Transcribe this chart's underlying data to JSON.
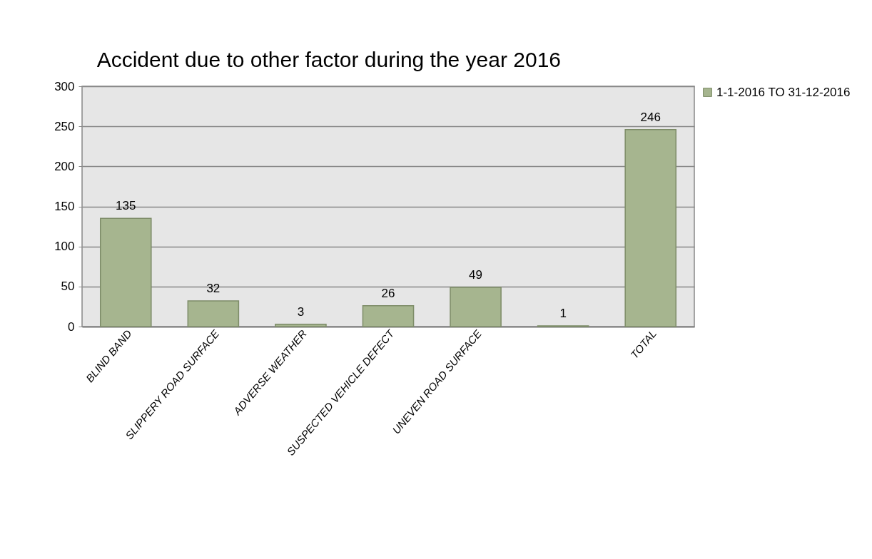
{
  "chart_data": {
    "type": "bar",
    "title": "Accident due to other factor during the year 2016",
    "categories": [
      "BLIND BAND",
      "SLIPPERY ROAD SURFACE",
      "ADVERSE WEATHER",
      "SUSPECTED VEHICLE DEFECT",
      "UNEVEN ROAD SURFACE",
      null,
      "TOTAL"
    ],
    "series": [
      {
        "name": "1-1-2016 TO 31-12-2016",
        "color": "#a6b58f",
        "values": [
          135,
          32,
          3,
          26,
          49,
          1,
          246
        ]
      }
    ],
    "ylim": [
      0,
      300
    ],
    "yticks": [
      0,
      50,
      100,
      150,
      200,
      250,
      300
    ],
    "grid": "y",
    "legend": "right",
    "data_labels": true
  }
}
